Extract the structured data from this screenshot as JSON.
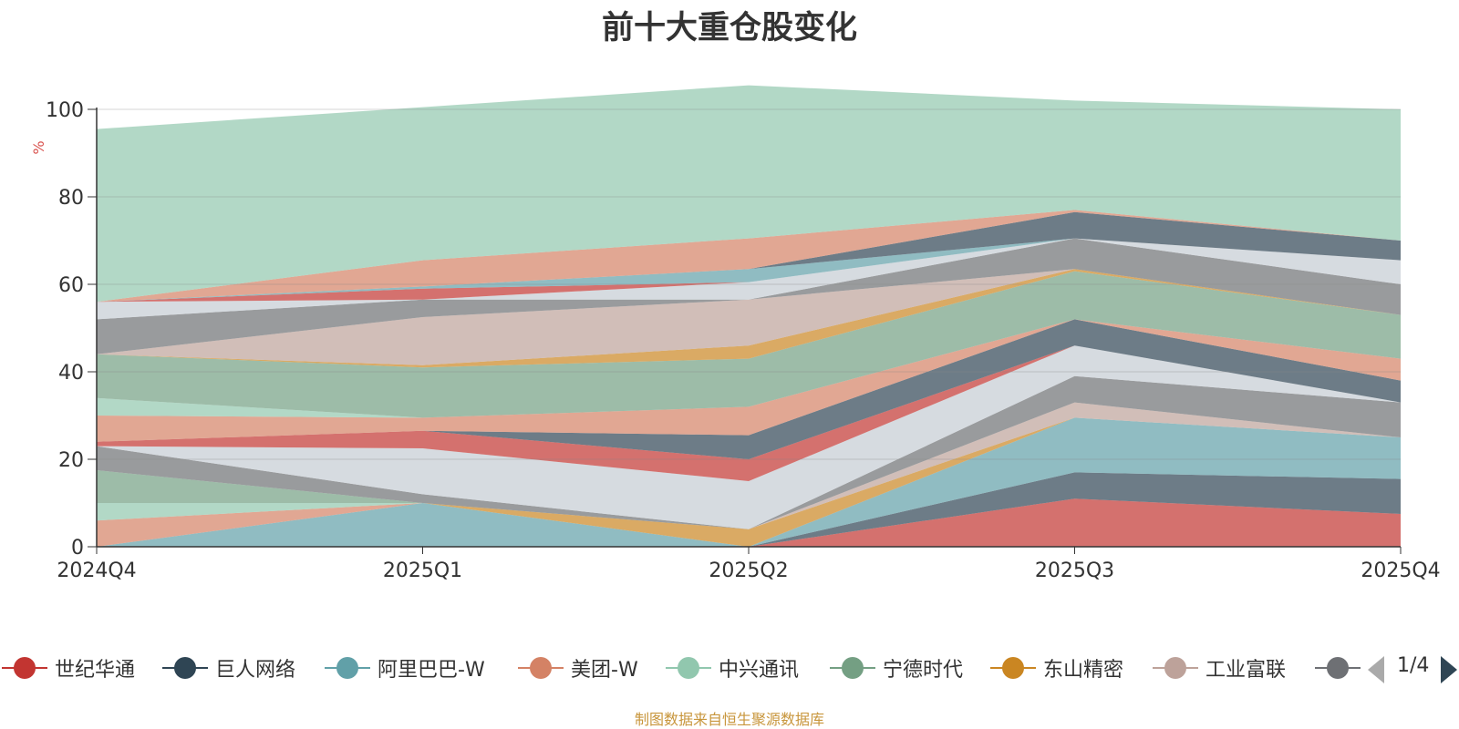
{
  "title": "前十大重仓股变化",
  "source_note": "制图数据来自恒生聚源数据库",
  "pager": {
    "text": "1/4"
  },
  "chart_data": {
    "type": "area",
    "stacked": true,
    "title": "前十大重仓股变化",
    "ylabel": "%",
    "ylim": [
      0,
      100
    ],
    "yticks": [
      0,
      20,
      40,
      60,
      80,
      100
    ],
    "grid": true,
    "legend_position": "bottom",
    "categories": [
      "2024Q4",
      "2025Q1",
      "2025Q2",
      "2025Q3",
      "2025Q4"
    ],
    "series": [
      {
        "name": "世纪华通",
        "color": "#c23531",
        "values": [
          0,
          0,
          0,
          11,
          7.5
        ]
      },
      {
        "name": "巨人网络",
        "color": "#2f4554",
        "values": [
          0,
          0,
          0,
          6,
          8
        ]
      },
      {
        "name": "阿里巴巴-W",
        "color": "#61a0a8",
        "values": [
          0,
          10,
          0,
          12.5,
          9.5
        ]
      },
      {
        "name": "美团-W",
        "color": "#d48265",
        "values": [
          6,
          0,
          0,
          0,
          0
        ]
      },
      {
        "name": "中兴通讯",
        "color": "#91c7ae",
        "values": [
          4,
          0,
          0,
          0,
          0
        ]
      },
      {
        "name": "宁德时代",
        "color": "#749f83",
        "values": [
          7.5,
          0,
          0,
          0,
          0
        ]
      },
      {
        "name": "东山精密",
        "color": "#ca8622",
        "values": [
          0,
          0,
          4,
          0,
          0
        ]
      },
      {
        "name": "工业富联",
        "color": "#bda29a",
        "values": [
          0,
          0,
          0,
          3.5,
          0
        ]
      },
      {
        "name": "",
        "color": "#6e7074",
        "values": [
          5.5,
          2,
          0,
          6,
          8
        ]
      },
      {
        "name": "",
        "color": "#c4ccd3",
        "values": [
          0,
          10.5,
          11,
          7,
          0
        ]
      },
      {
        "name": "",
        "color": "#c23531",
        "values": [
          1,
          4,
          5,
          0,
          0
        ]
      },
      {
        "name": "",
        "color": "#2f4554",
        "values": [
          0,
          0,
          5.5,
          6,
          5
        ]
      },
      {
        "name": "",
        "color": "#d48265",
        "values": [
          6,
          3,
          6.5,
          0,
          5
        ]
      },
      {
        "name": "",
        "color": "#91c7ae",
        "values": [
          4,
          0,
          0,
          0,
          0
        ]
      },
      {
        "name": "",
        "color": "#749f83",
        "values": [
          10,
          11.5,
          11,
          11,
          10
        ]
      },
      {
        "name": "",
        "color": "#ca8622",
        "values": [
          0,
          0.5,
          3,
          0.5,
          0
        ]
      },
      {
        "name": "",
        "color": "#bda29a",
        "values": [
          0,
          11,
          10.5,
          0,
          0
        ]
      },
      {
        "name": "",
        "color": "#6e7074",
        "values": [
          8,
          4,
          0,
          7,
          7
        ]
      },
      {
        "name": "",
        "color": "#c4ccd3",
        "values": [
          4,
          0,
          4,
          0,
          5.5
        ]
      },
      {
        "name": "",
        "color": "#c23531",
        "values": [
          0,
          2.5,
          0,
          0,
          0
        ]
      },
      {
        "name": "",
        "color": "#61a0a8",
        "values": [
          0,
          0.5,
          3,
          0,
          0
        ]
      },
      {
        "name": "",
        "color": "#2f4554",
        "values": [
          0,
          0,
          0,
          6,
          4.5
        ]
      },
      {
        "name": "",
        "color": "#d48265",
        "values": [
          0,
          6,
          7,
          0.5,
          0
        ]
      },
      {
        "name": "",
        "color": "#91c7ae",
        "values": [
          39.5,
          35,
          35,
          25,
          30
        ]
      }
    ]
  }
}
